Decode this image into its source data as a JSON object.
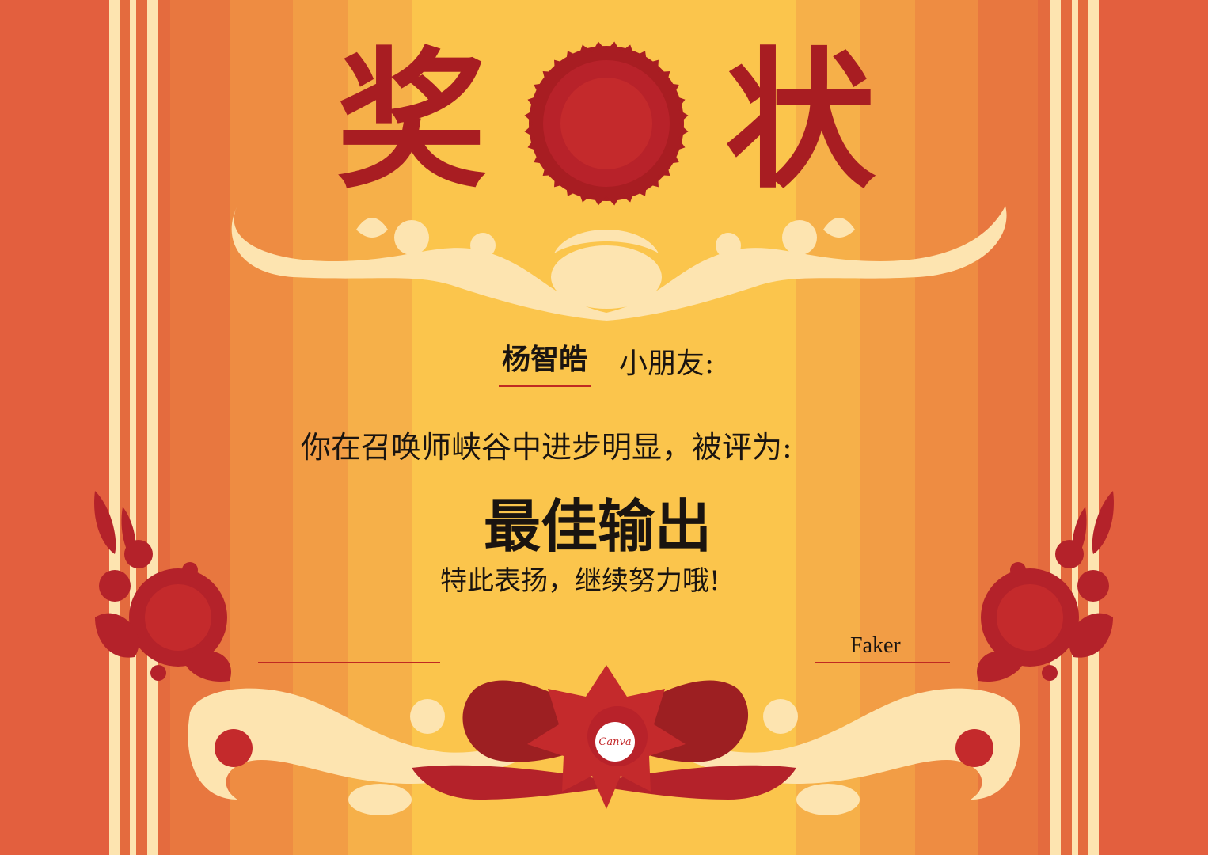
{
  "certificate": {
    "title_char_1": "奖",
    "title_char_2": "状",
    "recipient_name": "杨智皓",
    "recipient_suffix": "小朋友:",
    "body_line": "你在召唤师峡谷中进步明显，被评为:",
    "award_title": "最佳输出",
    "closing_line": "特此表扬，继续努力哦!",
    "signature_left": "",
    "signature_right": "Faker"
  },
  "brand": {
    "logo_text": "Canva"
  },
  "colors": {
    "outer_orange": "#e35f3e",
    "mid_orange": "#ee8c42",
    "inner_gold": "#fbc54c",
    "deep_red": "#a81d22",
    "cream": "#fde4b0"
  }
}
